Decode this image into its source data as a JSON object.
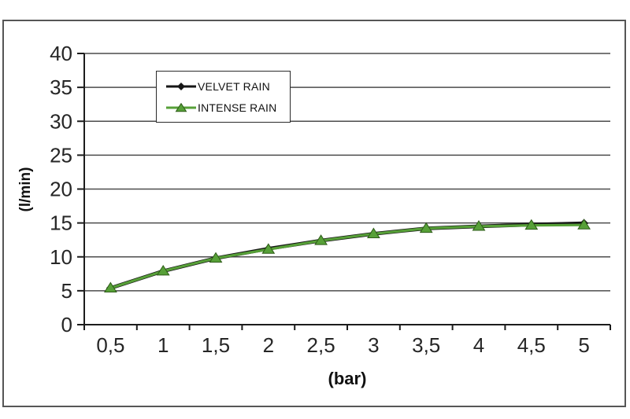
{
  "chart_data": {
    "type": "line",
    "title": "",
    "xlabel": "(bar)",
    "ylabel": "(l/min)",
    "categories": [
      "0,5",
      "1",
      "1,5",
      "2",
      "2,5",
      "3",
      "3,5",
      "4",
      "4,5",
      "5"
    ],
    "series": [
      {
        "name": "VELVET RAIN",
        "marker": "diamond",
        "color": "#161616",
        "values": [
          5.4,
          7.9,
          9.8,
          11.2,
          12.4,
          13.4,
          14.2,
          14.5,
          14.75,
          14.95
        ]
      },
      {
        "name": "INTENSE RAIN",
        "marker": "triangle",
        "color": "#57a038",
        "marker_stroke": "#2d5c17",
        "values": [
          5.4,
          7.9,
          9.8,
          11.1,
          12.4,
          13.4,
          14.2,
          14.5,
          14.65,
          14.7
        ]
      }
    ],
    "ylim": [
      0,
      40
    ],
    "ytick_step": 5,
    "yticks": [
      "0",
      "5",
      "10",
      "15",
      "20",
      "25",
      "30",
      "35",
      "40"
    ],
    "grid": true,
    "grid_color": "#4c4c4c",
    "axis_color": "#1c1c1c",
    "tick_text_color": "#262626",
    "legend_position": "top-left-inside"
  }
}
